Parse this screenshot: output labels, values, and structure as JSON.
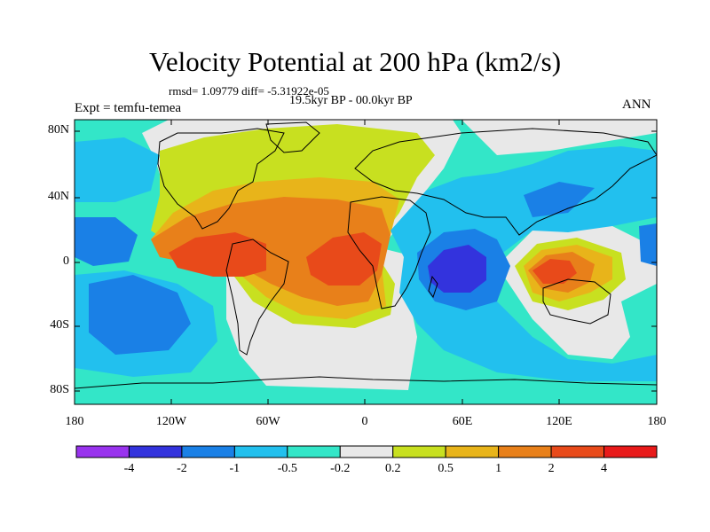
{
  "title": "Velocity Potential at 200 hPa (km2/s)",
  "stats_line": "rmsd= 1.09779 diff= -5.31922e-05",
  "period": "19.5kyr BP - 00.0kyr BP",
  "expt_label": "Expt = temfu-temea",
  "season": "ANN",
  "map": {
    "lat_range": [
      -90,
      90
    ],
    "lon_range": [
      -180,
      180
    ],
    "y_ticks": [
      "80N",
      "40N",
      "0",
      "40S",
      "80S"
    ],
    "x_ticks": [
      "180",
      "120W",
      "60W",
      "0",
      "60E",
      "120E",
      "180"
    ]
  },
  "colorbar": {
    "labels": [
      "-4",
      "-2",
      "-1",
      "-0.5",
      "-0.2",
      "0.2",
      "0.5",
      "1",
      "2",
      "4"
    ],
    "colors": [
      "#9933ee",
      "#3333dd",
      "#1a80e6",
      "#22c0ee",
      "#33e6c8",
      "#e8e8e8",
      "#c8e020",
      "#e8b41a",
      "#e8801a",
      "#e84a1a",
      "#e81a1a"
    ]
  },
  "palette": {
    "ocean_bg": "#33e6c8",
    "neutral": "#e8e8e8",
    "yellow_green": "#c8e020",
    "orange_light": "#e8b41a",
    "orange": "#e8801a",
    "orange_red": "#e84a1a",
    "cyan": "#22c0ee",
    "blue": "#1a80e6",
    "deep_blue": "#3333dd"
  }
}
